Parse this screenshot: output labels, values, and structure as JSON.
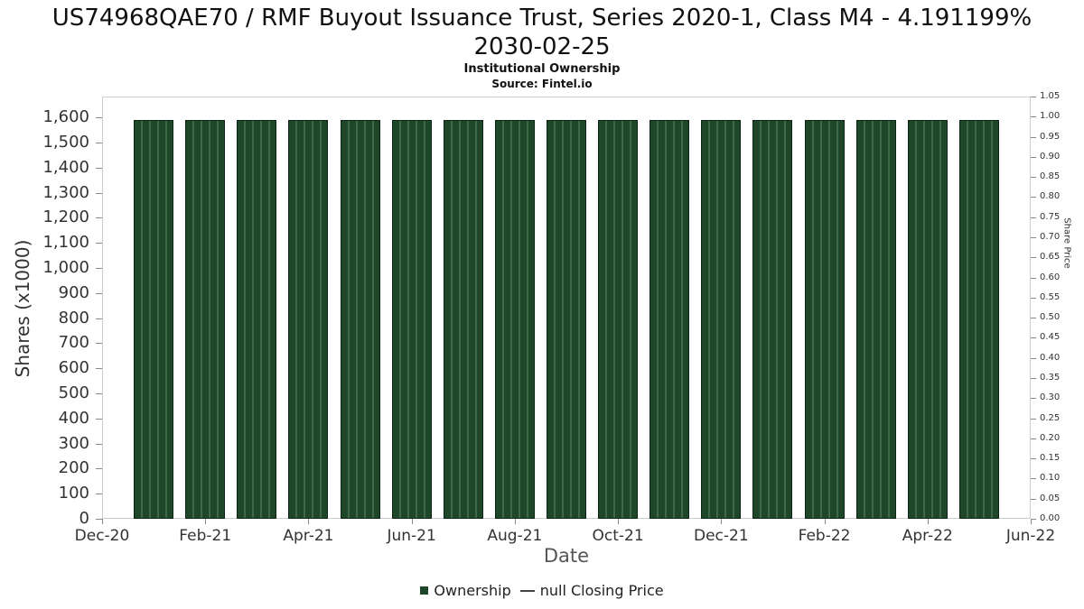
{
  "header": {
    "title_line1": "US74968QAE70 / RMF Buyout Issuance Trust, Series 2020-1, Class M4 - 4.191199%",
    "title_line2": "2030-02-25",
    "subtitle": "Institutional Ownership",
    "source": "Source: Fintel.io"
  },
  "chart_data": {
    "type": "bar",
    "title": "US74968QAE70 / RMF Buyout Issuance Trust, Series 2020-1, Class M4 - 4.191199% 2030-02-25",
    "subtitle": "Institutional Ownership",
    "source": "Source: Fintel.io",
    "xlabel": "Date",
    "ylabel_left": "Shares (x1000)",
    "ylabel_right": "Share Price",
    "x_tick_labels": [
      "Dec-20",
      "Feb-21",
      "Apr-21",
      "Jun-21",
      "Aug-21",
      "Oct-21",
      "Dec-21",
      "Feb-22",
      "Apr-22",
      "Jun-22"
    ],
    "left_axis": {
      "min": 0,
      "max": 1600,
      "step": 100,
      "plot_top_value": 1683
    },
    "right_axis": {
      "min": 0,
      "max": 1.05,
      "step": 0.05
    },
    "categories": [
      "Jan-21",
      "Feb-21",
      "Mar-21",
      "Apr-21",
      "May-21",
      "Jun-21",
      "Jul-21",
      "Aug-21",
      "Sep-21",
      "Oct-21",
      "Nov-21",
      "Dec-21",
      "Jan-22",
      "Feb-22",
      "Mar-22",
      "Apr-22",
      "May-22"
    ],
    "series": [
      {
        "name": "Ownership",
        "color": "#1e4628",
        "values": [
          1590,
          1590,
          1590,
          1590,
          1590,
          1590,
          1590,
          1590,
          1590,
          1590,
          1590,
          1590,
          1590,
          1590,
          1590,
          1590,
          1590
        ]
      },
      {
        "name": "null Closing Price",
        "color": "#444444",
        "values": []
      }
    ],
    "legend": [
      {
        "label": "Ownership",
        "marker": "square",
        "color": "#1e4628"
      },
      {
        "label": "null Closing Price",
        "marker": "line",
        "color": "#444444"
      }
    ],
    "grid": false,
    "legend_position": "bottom",
    "x_range_months": [
      "Dec-20",
      "Jun-22"
    ]
  }
}
